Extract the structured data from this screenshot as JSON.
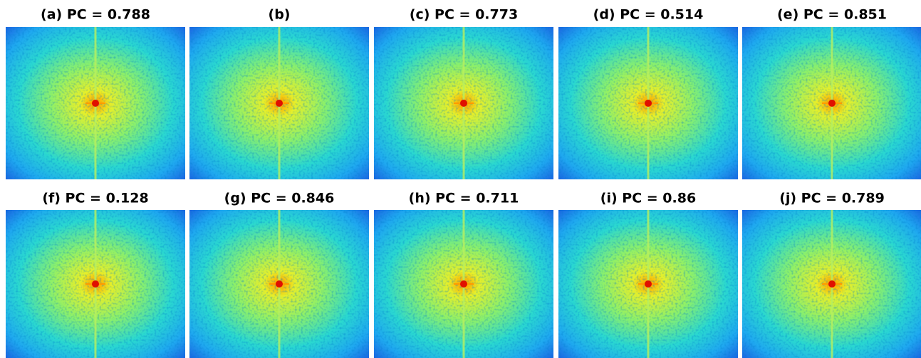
{
  "panels": [
    {
      "title": "(a) PC = 0.788"
    },
    {
      "title": "(b)"
    },
    {
      "title": "(c) PC = 0.773"
    },
    {
      "title": "(d) PC = 0.514"
    },
    {
      "title": "(e) PC = 0.851"
    },
    {
      "title": "(f) PC = 0.128"
    },
    {
      "title": "(g) PC = 0.846"
    },
    {
      "title": "(h) PC = 0.711"
    },
    {
      "title": "(i) PC = 0.86"
    },
    {
      "title": "(j) PC = 0.789"
    }
  ]
}
